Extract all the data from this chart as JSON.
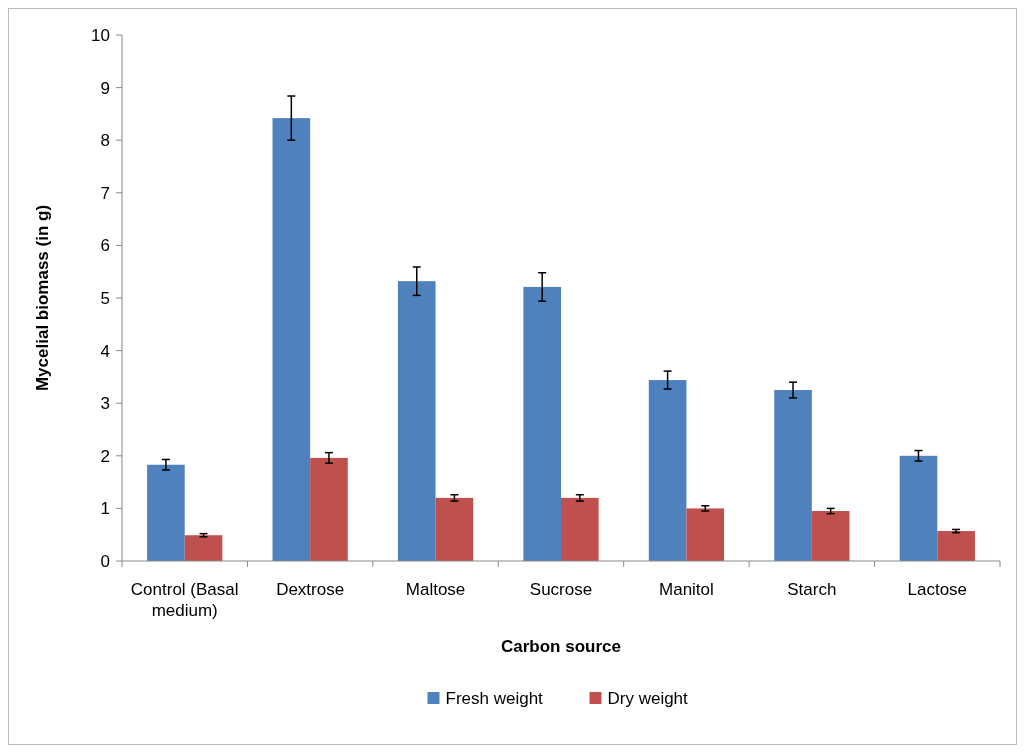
{
  "chart_data": {
    "type": "bar",
    "xlabel": "Carbon source",
    "ylabel": "Mycelial biomass (in g)",
    "categories": [
      "Control (Basal medium)",
      "Dextrose",
      "Maltose",
      "Sucrose",
      "Manitol",
      "Starch",
      "Lactose"
    ],
    "series": [
      {
        "name": "Fresh weight",
        "color": "#4f81bd",
        "values": [
          1.83,
          8.42,
          5.32,
          5.21,
          3.44,
          3.25,
          2.0
        ],
        "errors": [
          0.1,
          0.42,
          0.27,
          0.27,
          0.17,
          0.15,
          0.1
        ]
      },
      {
        "name": "Dry weight",
        "color": "#c0504d",
        "values": [
          0.49,
          1.96,
          1.2,
          1.2,
          1.0,
          0.95,
          0.57
        ],
        "errors": [
          0.03,
          0.1,
          0.06,
          0.06,
          0.05,
          0.05,
          0.03
        ]
      }
    ],
    "ylim": [
      0,
      10
    ],
    "yticks": [
      0,
      1,
      2,
      3,
      4,
      5,
      6,
      7,
      8,
      9,
      10
    ],
    "grid": false,
    "legend": "bottom"
  }
}
